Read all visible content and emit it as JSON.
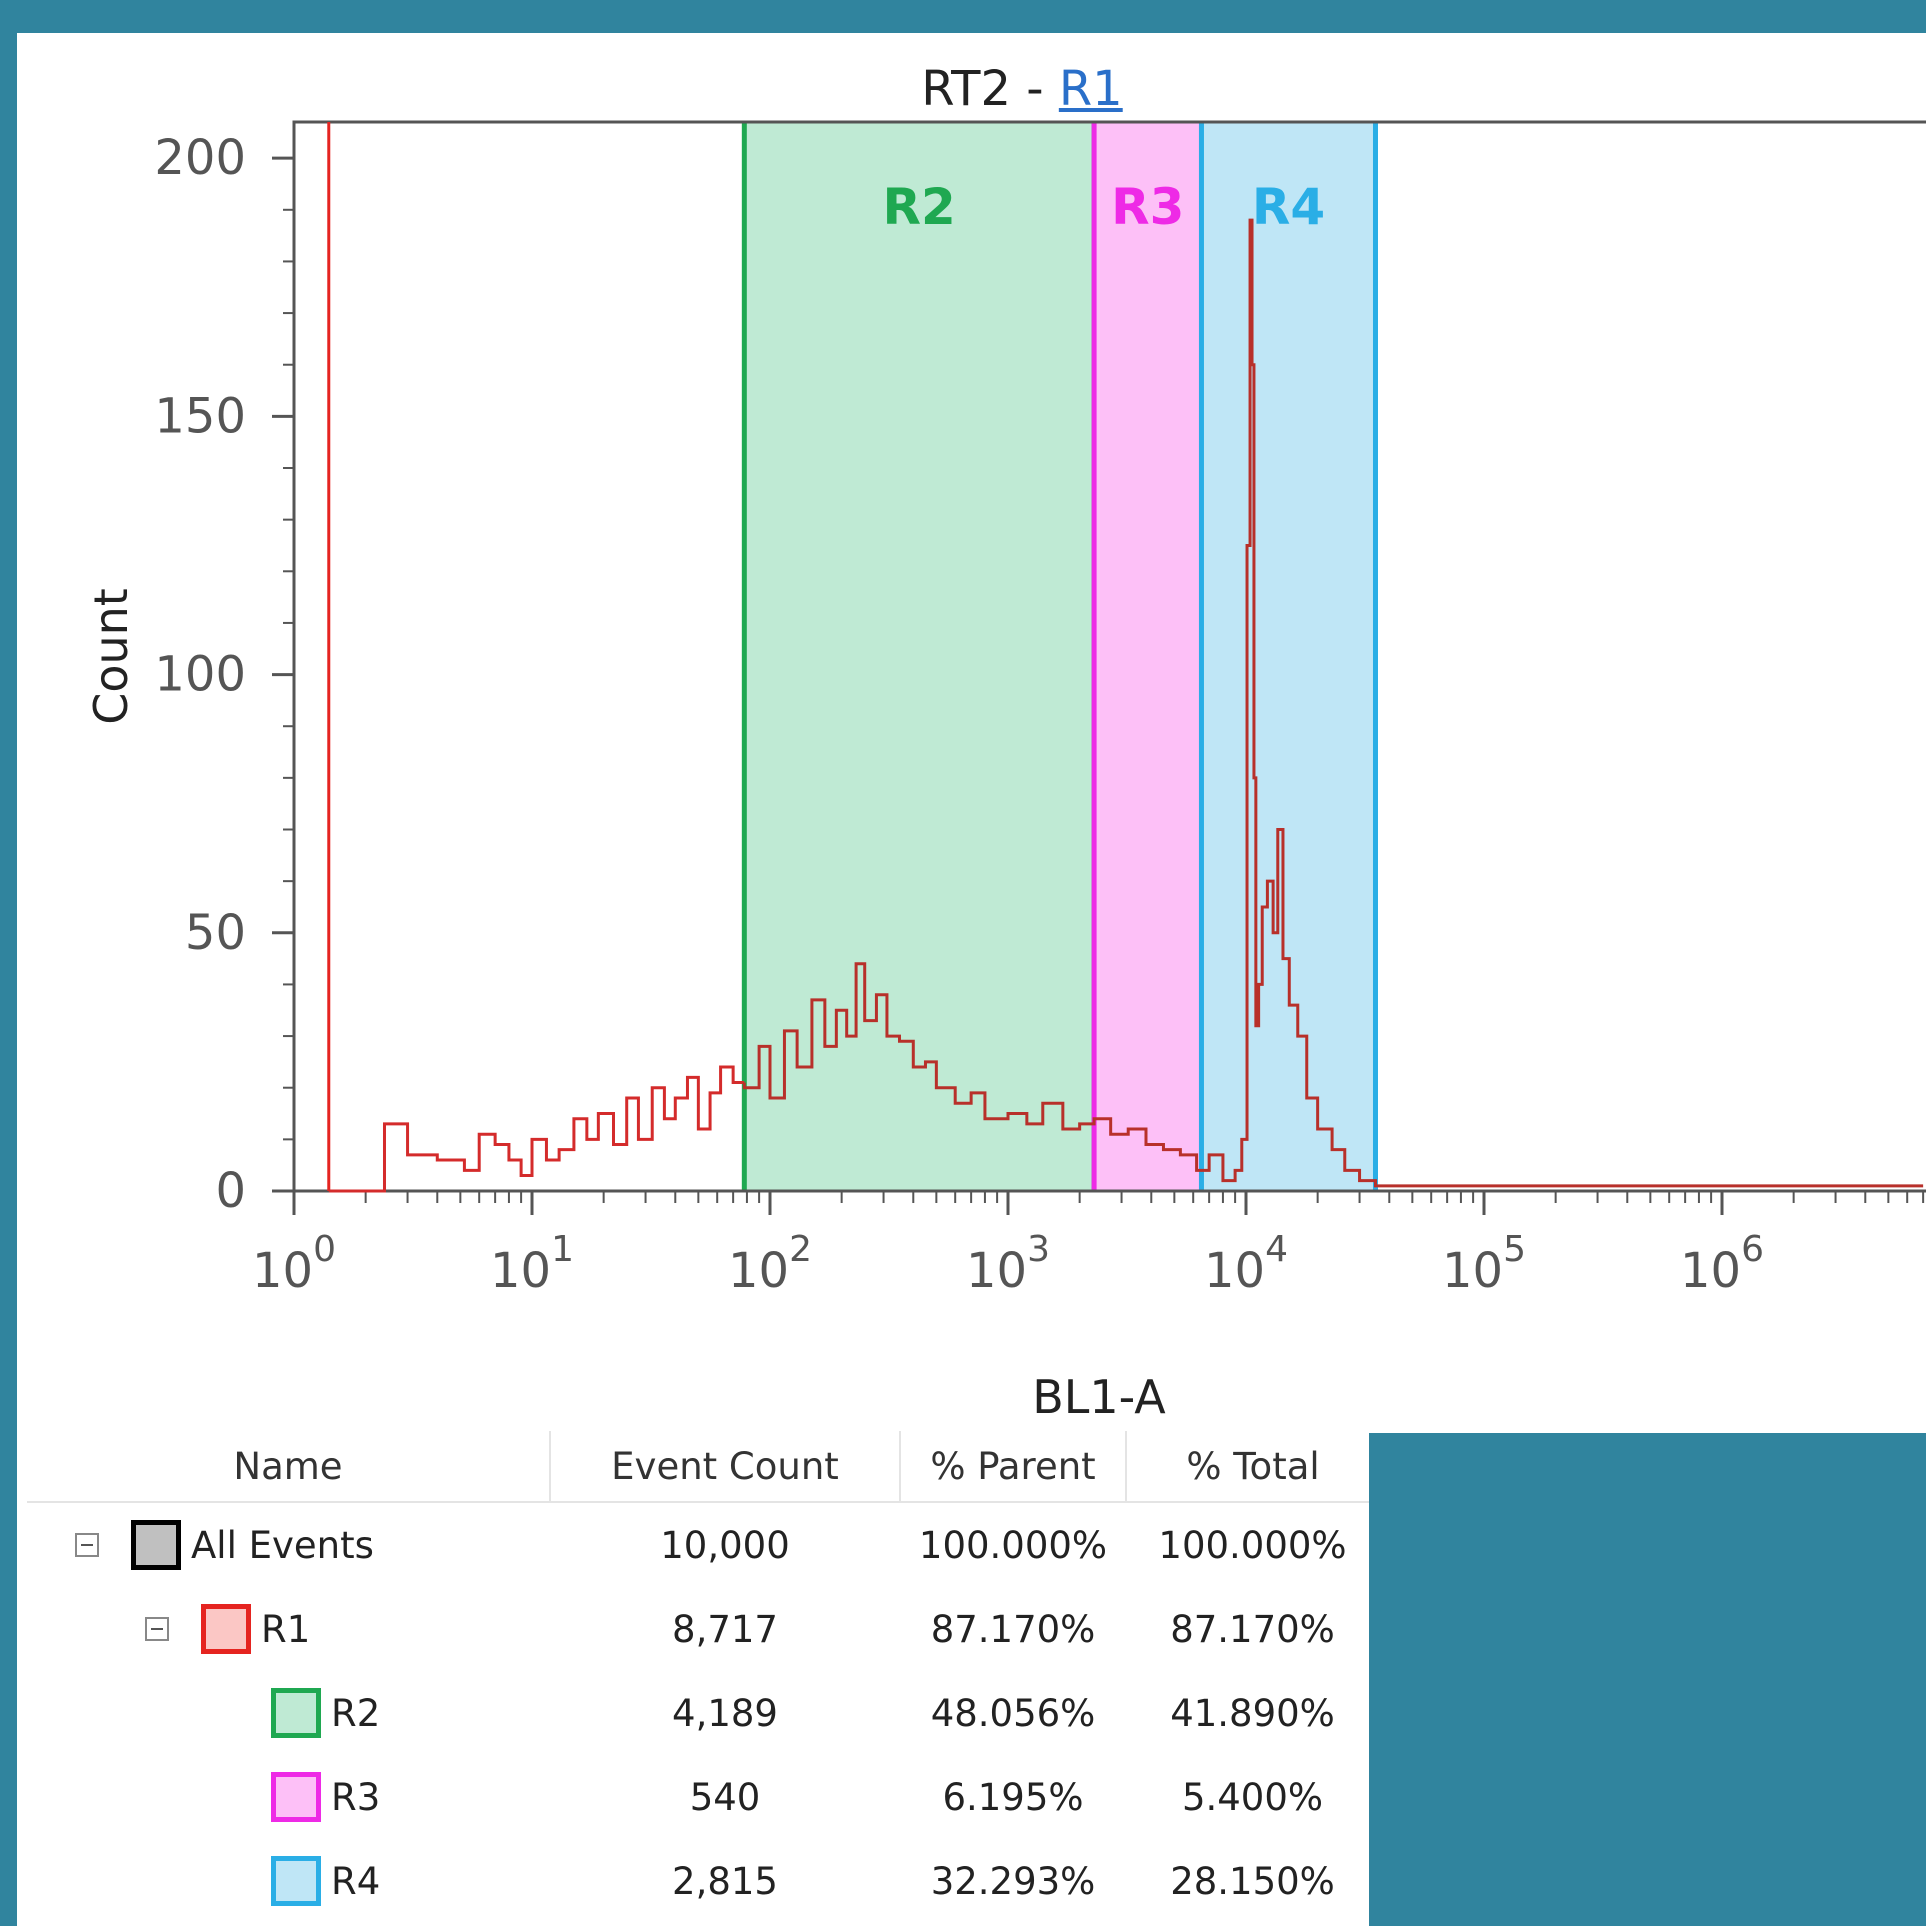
{
  "chart_data": {
    "type": "histogram",
    "title_prefix": "RT2 - ",
    "title_link": "R1",
    "xlabel": "BL1-A",
    "ylabel": "Count",
    "xscale": "log",
    "xlim": [
      1,
      7000000
    ],
    "ylim": [
      0,
      207
    ],
    "y_ticks": [
      0,
      50,
      100,
      150,
      200
    ],
    "x_ticks": [
      {
        "value": 1,
        "base": "10",
        "exp": "0"
      },
      {
        "value": 10,
        "base": "10",
        "exp": "1"
      },
      {
        "value": 100,
        "base": "10",
        "exp": "2"
      },
      {
        "value": 1000,
        "base": "10",
        "exp": "3"
      },
      {
        "value": 10000,
        "base": "10",
        "exp": "4"
      },
      {
        "value": 100000,
        "base": "10",
        "exp": "5"
      },
      {
        "value": 1000000,
        "base": "10",
        "exp": "6"
      }
    ],
    "gates": [
      {
        "name": "R2",
        "x_start": 78,
        "x_end": 2300,
        "color": "#1fa851",
        "fill": "#bfead4"
      },
      {
        "name": "R3",
        "x_start": 2300,
        "x_end": 6500,
        "color": "#ee2ae6",
        "fill": "#fdc0f7"
      },
      {
        "name": "R4",
        "x_start": 6500,
        "x_end": 35000,
        "color": "#2aaee6",
        "fill": "#bfe6f6"
      }
    ],
    "r1_gate_marker": 1.4,
    "series": [
      {
        "color": "#d42b2b",
        "gated_color": "#b8302a",
        "x": [
          1.4,
          2.0,
          2.4,
          2.7,
          3.0,
          3.4,
          4.0,
          4.6,
          5.2,
          6.0,
          7.0,
          8.0,
          9.0,
          10.0,
          11.5,
          13.0,
          15.0,
          17.0,
          19.0,
          22.0,
          25.0,
          28.0,
          32.0,
          36.0,
          40.0,
          45.0,
          50.0,
          56.0,
          62.0,
          70.0,
          78.0,
          90.0,
          100.0,
          115.0,
          130.0,
          150.0,
          170.0,
          190.0,
          210.0,
          230.0,
          250.0,
          280.0,
          310.0,
          350.0,
          400.0,
          450.0,
          500.0,
          600.0,
          700.0,
          800.0,
          1000.0,
          1200.0,
          1400.0,
          1700.0,
          2000.0,
          2300.0,
          2700.0,
          3200.0,
          3800.0,
          4500.0,
          5300.0,
          6200.0,
          7000.0,
          8000.0,
          9000.0,
          9600.0,
          10100.0,
          10400.0,
          10600.0,
          10800.0,
          11000.0,
          11300.0,
          11700.0,
          12300.0,
          13000.0,
          13600.0,
          14300.0,
          15200.0,
          16500.0,
          18000.0,
          20000.0,
          23000.0,
          26000.0,
          30000.0,
          35000.0,
          45000.0,
          60000.0,
          100000.0,
          300000.0,
          1000000.0,
          7000000.0
        ],
        "y": [
          0,
          0,
          13,
          13,
          7,
          7,
          6,
          6,
          4,
          11,
          9,
          6,
          3,
          10,
          6,
          8,
          14,
          10,
          15,
          9,
          18,
          10,
          20,
          14,
          18,
          22,
          12,
          19,
          24,
          21,
          20,
          28,
          18,
          31,
          24,
          37,
          28,
          35,
          30,
          44,
          33,
          38,
          30,
          29,
          24,
          25,
          20,
          17,
          19,
          14,
          15,
          13,
          17,
          12,
          13,
          14,
          11,
          12,
          9,
          8,
          7,
          4,
          7,
          2,
          4,
          10,
          125,
          188,
          160,
          80,
          32,
          40,
          55,
          60,
          50,
          70,
          45,
          36,
          30,
          18,
          12,
          8,
          4,
          2,
          1,
          1,
          1,
          1,
          1,
          1,
          1
        ]
      }
    ]
  },
  "table": {
    "headers": [
      "Name",
      "Event Count",
      "% Parent",
      "% Total"
    ],
    "rows": [
      {
        "name": "All Events",
        "indent": 0,
        "toggle": true,
        "color": "#000000",
        "fill": "#c0c0c0",
        "count": "10,000",
        "parent": "100.000%",
        "total": "100.000%"
      },
      {
        "name": "R1",
        "indent": 1,
        "toggle": true,
        "color": "#e52420",
        "fill": "#fbc7c5",
        "count": "8,717",
        "parent": "87.170%",
        "total": "87.170%"
      },
      {
        "name": "R2",
        "indent": 2,
        "toggle": false,
        "color": "#1fa851",
        "fill": "#bfead4",
        "count": "4,189",
        "parent": "48.056%",
        "total": "41.890%"
      },
      {
        "name": "R3",
        "indent": 2,
        "toggle": false,
        "color": "#ee2ae6",
        "fill": "#fdc0f7",
        "count": "540",
        "parent": "6.195%",
        "total": "5.400%"
      },
      {
        "name": "R4",
        "indent": 2,
        "toggle": false,
        "color": "#2aaee6",
        "fill": "#bfe6f6",
        "count": "2,815",
        "parent": "32.293%",
        "total": "28.150%"
      }
    ]
  }
}
